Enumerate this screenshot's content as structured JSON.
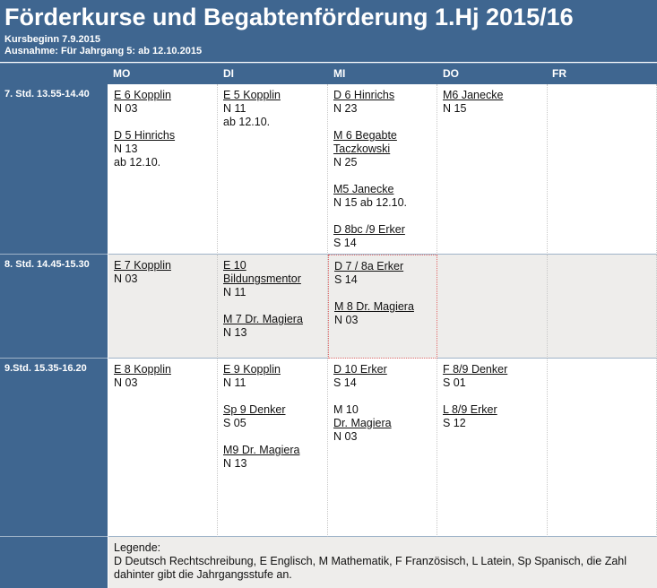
{
  "header": {
    "title": "Förderkurse und Begabtenförderung 1.Hj 2015/16",
    "subtitle1": "Kursbeginn 7.9.2015",
    "subtitle2": "Ausnahme: Für Jahrgang 5: ab 12.10.2015"
  },
  "days": [
    "MO",
    "DI",
    "MI",
    "DO",
    "FR"
  ],
  "rows": [
    {
      "label": "7. Std. 13.55-14.40",
      "cells": [
        [
          {
            "course": "E 6 Kopplin",
            "lines": [
              "N 03"
            ]
          },
          {
            "course": "D 5 Hinrichs",
            "lines": [
              "N 13",
              "ab 12.10."
            ]
          }
        ],
        [
          {
            "course": "E 5 Kopplin",
            "lines": [
              "N 11",
              "ab 12.10."
            ]
          }
        ],
        [
          {
            "course": "D 6 Hinrichs",
            "lines": [
              "N 23"
            ]
          },
          {
            "course": "M 6 Begabte Taczkowski",
            "lines": [
              "N 25"
            ]
          },
          {
            "course": "M5 Janecke",
            "lines": [
              "N 15 ab 12.10."
            ]
          },
          {
            "course": "D 8bc /9 Erker",
            "lines": [
              "S 14"
            ]
          }
        ],
        [
          {
            "course": "M6 Janecke",
            "lines": [
              "N 15"
            ]
          }
        ],
        []
      ]
    },
    {
      "label": "8. Std. 14.45-15.30",
      "cells": [
        [
          {
            "course": "E 7 Kopplin",
            "lines": [
              "N 03"
            ]
          }
        ],
        [
          {
            "course": "E 10 Bildungsmentor",
            "lines": [
              "N 11"
            ]
          },
          {
            "course": "M 7 Dr. Magiera",
            "lines": [
              "N 13"
            ]
          }
        ],
        [
          {
            "course": "D 7 / 8a Erker",
            "lines": [
              "S 14"
            ]
          },
          {
            "course": "M 8 Dr. Magiera",
            "lines": [
              "N 03"
            ]
          }
        ],
        [],
        []
      ]
    },
    {
      "label": "9.Std. 15.35-16.20",
      "cells": [
        [
          {
            "course": "E 8 Kopplin",
            "lines": [
              "N 03"
            ]
          }
        ],
        [
          {
            "course": "E 9 Kopplin",
            "lines": [
              "N 11"
            ]
          },
          {
            "course": "Sp 9 Denker",
            "lines": [
              "S 05"
            ]
          },
          {
            "course": "M9 Dr. Magiera",
            "lines": [
              "N 13"
            ]
          }
        ],
        [
          {
            "course": "D 10 Erker",
            "lines": [
              "S 14"
            ]
          },
          {
            "course": "",
            "lines": [
              "M 10"
            ],
            "course2": "Dr. Magiera",
            "lines2": [
              "N 03"
            ]
          }
        ],
        [
          {
            "course": "F 8/9 Denker",
            "lines": [
              "S 01"
            ]
          },
          {
            "course": "L 8/9 Erker",
            "lines": [
              "S 12"
            ]
          }
        ],
        []
      ]
    }
  ],
  "legend": {
    "title": "Legende:",
    "text": "D Deutsch Rechtschreibung, E Englisch, M Mathematik, F Französisch, L Latein, Sp Spanisch, die Zahl dahinter gibt die Jahrgangsstufe an."
  },
  "colors": {
    "header": "#3f6690",
    "grey_row": "#eeedeb"
  }
}
